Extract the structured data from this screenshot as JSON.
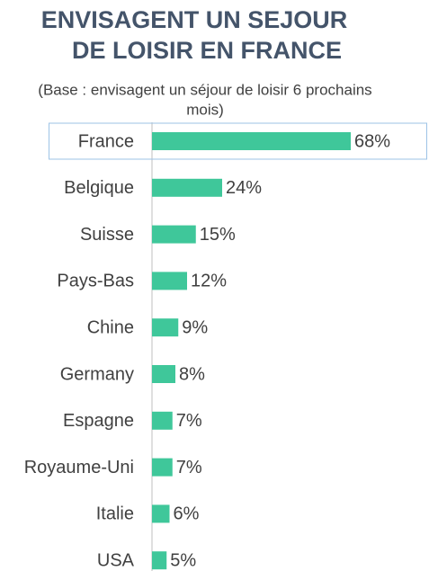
{
  "chart_data": {
    "type": "hbar",
    "title": [
      "ENVISAGENT UN SEJOUR",
      "DE LOISIR EN FRANCE"
    ],
    "subtitle": [
      "(Base : envisagent un séjour de loisir 6 prochains",
      "mois)"
    ],
    "categories": [
      "France",
      "Belgique",
      "Suisse",
      "Pays-Bas",
      "Chine",
      "Germany",
      "Espagne",
      "Royaume-Uni",
      "Italie",
      "USA"
    ],
    "values": [
      68,
      24,
      15,
      12,
      9,
      8,
      7,
      7,
      6,
      5
    ],
    "value_labels": [
      "68%",
      "24%",
      "15%",
      "12%",
      "9%",
      "8%",
      "7%",
      "7%",
      "6%",
      "5%"
    ],
    "color": "#3fc79a",
    "highlight": "France"
  }
}
